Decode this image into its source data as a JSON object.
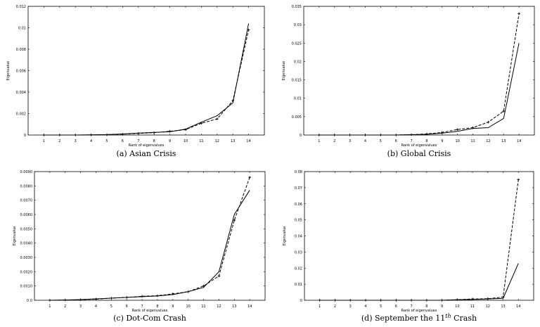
{
  "chart_data": [
    {
      "type": "line",
      "caption": "(a) Asian Crisis",
      "xlabel": "Rank of eigenvalues",
      "ylabel": "Eigenvalue",
      "xlim": [
        0,
        15
      ],
      "ylim": [
        0,
        0.012
      ],
      "x_ticks": [
        1,
        2,
        3,
        4,
        5,
        6,
        7,
        8,
        9,
        10,
        11,
        12,
        13,
        14
      ],
      "y_ticks": [
        0,
        0.002,
        0.004,
        0.006,
        0.008,
        0.01,
        0.012
      ],
      "y_tick_labels": [
        "0",
        "0.002",
        "0.004",
        "0.006",
        "0.008",
        "0.01",
        "0.012"
      ],
      "x": [
        1,
        2,
        3,
        4,
        5,
        6,
        7,
        8,
        9,
        10,
        11,
        12,
        13,
        14
      ],
      "series": [
        {
          "style": "solid",
          "values": [
            0,
            0,
            0,
            2e-05,
            4e-05,
            0.0001,
            0.00018,
            0.00025,
            0.0003,
            0.00055,
            0.0012,
            0.0018,
            0.003,
            0.0104
          ]
        },
        {
          "style": "dashed",
          "values": [
            0,
            0,
            0,
            1e-05,
            3e-05,
            8e-05,
            0.00015,
            0.00022,
            0.00035,
            0.0005,
            0.0011,
            0.0015,
            0.0032,
            0.0098
          ]
        }
      ]
    },
    {
      "type": "line",
      "caption": "(b) Global Crisis",
      "xlabel": "Rank of eigenvalues",
      "ylabel": "Eigenvalue",
      "xlim": [
        0,
        15
      ],
      "ylim": [
        0,
        0.035
      ],
      "x_ticks": [
        1,
        2,
        3,
        4,
        5,
        6,
        7,
        8,
        9,
        10,
        11,
        12,
        13,
        14
      ],
      "y_ticks": [
        0,
        0.005,
        0.01,
        0.015,
        0.02,
        0.025,
        0.03,
        0.035
      ],
      "y_tick_labels": [
        "0",
        "0.005",
        "0.01",
        "0.015",
        "0.02",
        "0.025",
        "0.03",
        "0.035"
      ],
      "x": [
        1,
        2,
        3,
        4,
        5,
        6,
        7,
        8,
        9,
        10,
        11,
        12,
        13,
        14
      ],
      "series": [
        {
          "style": "solid",
          "values": [
            0,
            0,
            0,
            0,
            0,
            0,
            0.0001,
            0.0002,
            0.0005,
            0.001,
            0.0018,
            0.002,
            0.0045,
            0.025
          ]
        },
        {
          "style": "dashed",
          "values": [
            0,
            0,
            0,
            0,
            0,
            0,
            0.0001,
            0.0003,
            0.0007,
            0.0015,
            0.002,
            0.0035,
            0.0065,
            0.033
          ]
        }
      ]
    },
    {
      "type": "line",
      "caption": "(c) Dot-Com Crash",
      "xlabel": "Rank of eigenvalues",
      "ylabel": "Eigenvalue",
      "xlim": [
        0,
        15
      ],
      "ylim": [
        0,
        0.009
      ],
      "x_ticks": [
        1,
        2,
        3,
        4,
        5,
        6,
        7,
        8,
        9,
        10,
        11,
        12,
        13,
        14
      ],
      "y_ticks": [
        0,
        0.001,
        0.002,
        0.003,
        0.004,
        0.005,
        0.006,
        0.007,
        0.008,
        0.009
      ],
      "y_tick_labels": [
        "0.0",
        "0.0010",
        "0.0020",
        "0.0030",
        "0.0040",
        "0.0050",
        "0.0060",
        "0.0070",
        "0.0080",
        "0.0090"
      ],
      "x": [
        1,
        2,
        3,
        4,
        5,
        6,
        7,
        8,
        9,
        10,
        11,
        12,
        13,
        14
      ],
      "series": [
        {
          "style": "solid",
          "values": [
            0,
            2e-05,
            5e-05,
            0.0001,
            0.00015,
            0.0002,
            0.00025,
            0.0003,
            0.0004,
            0.0006,
            0.0009,
            0.002,
            0.006,
            0.0077
          ]
        },
        {
          "style": "dashed",
          "values": [
            0,
            2e-05,
            4e-05,
            8e-05,
            0.00015,
            0.0002,
            0.00028,
            0.00032,
            0.00045,
            0.0006,
            0.001,
            0.0017,
            0.0056,
            0.0086
          ]
        }
      ]
    },
    {
      "type": "line",
      "caption_prefix": "(d) September the 11",
      "caption_sup": "th",
      "caption_suffix": " Crash",
      "xlabel": "Rank of eigenvalues",
      "ylabel": "Eigenvalue",
      "xlim": [
        0,
        15
      ],
      "ylim": [
        0,
        0.08
      ],
      "x_ticks": [
        1,
        2,
        3,
        4,
        5,
        6,
        7,
        8,
        9,
        10,
        11,
        12,
        13,
        14
      ],
      "y_ticks": [
        0,
        0.01,
        0.02,
        0.03,
        0.04,
        0.05,
        0.06,
        0.07,
        0.08
      ],
      "y_tick_labels": [
        "0",
        "0.01",
        "0.02",
        "0.03",
        "0.04",
        "0.05",
        "0.06",
        "0.07",
        "0.08"
      ],
      "x": [
        1,
        2,
        3,
        4,
        5,
        6,
        7,
        8,
        9,
        10,
        11,
        12,
        13,
        14
      ],
      "series": [
        {
          "style": "solid",
          "values": [
            0,
            0,
            0,
            0,
            0,
            0,
            0,
            0,
            0,
            0.0003,
            0.0005,
            0.0008,
            0.0012,
            0.023
          ]
        },
        {
          "style": "dashed",
          "values": [
            0,
            0,
            0,
            0,
            0,
            0,
            0,
            0,
            0,
            0.0004,
            0.0008,
            0.001,
            0.002,
            0.075
          ]
        }
      ]
    }
  ]
}
